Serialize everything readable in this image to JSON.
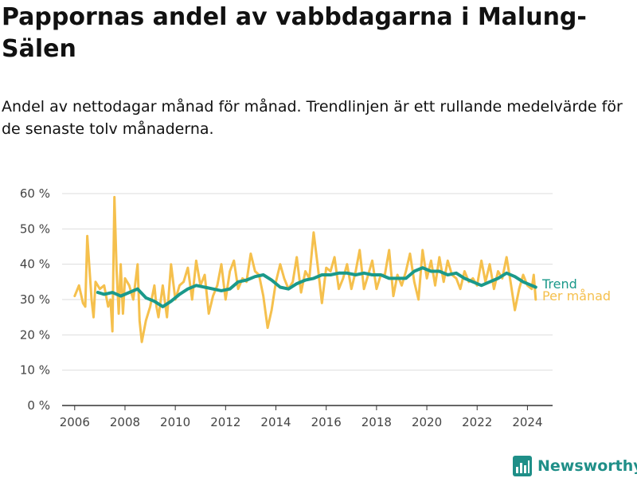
{
  "title": "Pappornas andel av vabbdagarna i Malung-Sälen",
  "subtitle": "Andel av nettodagar månad för månad. Trendlinjen är ett rullande medelvärde för de senaste tolv månaderna.",
  "brand": "Newsworthy",
  "colors": {
    "monthly": "#f5c04d",
    "trend": "#1a998a",
    "grid": "#dddddd",
    "axis": "#333333"
  },
  "chart_data": {
    "type": "line",
    "xlim": [
      2005.5,
      2025.0
    ],
    "ylim": [
      0,
      60
    ],
    "x_ticks": [
      {
        "value": 2006,
        "label": "2006"
      },
      {
        "value": 2008,
        "label": "2008"
      },
      {
        "value": 2010,
        "label": "2010"
      },
      {
        "value": 2012,
        "label": "2012"
      },
      {
        "value": 2014,
        "label": "2014"
      },
      {
        "value": 2016,
        "label": "2016"
      },
      {
        "value": 2018,
        "label": "2018"
      },
      {
        "value": 2020,
        "label": "2020"
      },
      {
        "value": 2022,
        "label": "2022"
      },
      {
        "value": 2024,
        "label": "2024"
      }
    ],
    "y_ticks": [
      {
        "value": 0,
        "label": "0 %"
      },
      {
        "value": 10,
        "label": "10 %"
      },
      {
        "value": 20,
        "label": "20 %"
      },
      {
        "value": 30,
        "label": "30 %"
      },
      {
        "value": 40,
        "label": "40 %"
      },
      {
        "value": 50,
        "label": "50 %"
      },
      {
        "value": 60,
        "label": "60 %"
      }
    ],
    "grid": true,
    "series": [
      {
        "name": "Per månad",
        "color": "#f5c04d",
        "points": [
          [
            2006.0,
            31
          ],
          [
            2006.17,
            34
          ],
          [
            2006.33,
            29
          ],
          [
            2006.42,
            28
          ],
          [
            2006.5,
            48
          ],
          [
            2006.67,
            30
          ],
          [
            2006.75,
            25
          ],
          [
            2006.83,
            35
          ],
          [
            2007.0,
            33
          ],
          [
            2007.17,
            34
          ],
          [
            2007.33,
            28
          ],
          [
            2007.42,
            30
          ],
          [
            2007.5,
            21
          ],
          [
            2007.58,
            59
          ],
          [
            2007.67,
            38
          ],
          [
            2007.75,
            26
          ],
          [
            2007.83,
            40
          ],
          [
            2007.92,
            26
          ],
          [
            2008.0,
            36
          ],
          [
            2008.17,
            34
          ],
          [
            2008.33,
            30
          ],
          [
            2008.5,
            40
          ],
          [
            2008.58,
            24
          ],
          [
            2008.67,
            18
          ],
          [
            2008.83,
            24
          ],
          [
            2009.0,
            28
          ],
          [
            2009.17,
            34
          ],
          [
            2009.25,
            28
          ],
          [
            2009.33,
            25
          ],
          [
            2009.5,
            34
          ],
          [
            2009.67,
            25
          ],
          [
            2009.83,
            40
          ],
          [
            2010.0,
            30
          ],
          [
            2010.17,
            34
          ],
          [
            2010.33,
            35
          ],
          [
            2010.5,
            39
          ],
          [
            2010.67,
            30
          ],
          [
            2010.83,
            41
          ],
          [
            2011.0,
            34
          ],
          [
            2011.17,
            37
          ],
          [
            2011.33,
            26
          ],
          [
            2011.5,
            31
          ],
          [
            2011.67,
            34
          ],
          [
            2011.83,
            40
          ],
          [
            2012.0,
            30
          ],
          [
            2012.17,
            38
          ],
          [
            2012.33,
            41
          ],
          [
            2012.5,
            33
          ],
          [
            2012.67,
            36
          ],
          [
            2012.83,
            35
          ],
          [
            2013.0,
            43
          ],
          [
            2013.17,
            38
          ],
          [
            2013.33,
            37
          ],
          [
            2013.5,
            31
          ],
          [
            2013.67,
            22
          ],
          [
            2013.83,
            27
          ],
          [
            2014.0,
            35
          ],
          [
            2014.17,
            40
          ],
          [
            2014.33,
            36
          ],
          [
            2014.5,
            33
          ],
          [
            2014.67,
            35
          ],
          [
            2014.83,
            42
          ],
          [
            2015.0,
            32
          ],
          [
            2015.17,
            38
          ],
          [
            2015.33,
            36
          ],
          [
            2015.5,
            49
          ],
          [
            2015.67,
            39
          ],
          [
            2015.83,
            29
          ],
          [
            2016.0,
            39
          ],
          [
            2016.17,
            38
          ],
          [
            2016.33,
            42
          ],
          [
            2016.5,
            33
          ],
          [
            2016.67,
            36
          ],
          [
            2016.83,
            40
          ],
          [
            2017.0,
            33
          ],
          [
            2017.17,
            38
          ],
          [
            2017.33,
            44
          ],
          [
            2017.5,
            33
          ],
          [
            2017.67,
            37
          ],
          [
            2017.83,
            41
          ],
          [
            2018.0,
            33
          ],
          [
            2018.17,
            37
          ],
          [
            2018.33,
            37
          ],
          [
            2018.5,
            44
          ],
          [
            2018.67,
            31
          ],
          [
            2018.83,
            37
          ],
          [
            2019.0,
            34
          ],
          [
            2019.17,
            38
          ],
          [
            2019.33,
            43
          ],
          [
            2019.5,
            35
          ],
          [
            2019.67,
            30
          ],
          [
            2019.83,
            44
          ],
          [
            2020.0,
            36
          ],
          [
            2020.17,
            41
          ],
          [
            2020.33,
            34
          ],
          [
            2020.5,
            42
          ],
          [
            2020.67,
            35
          ],
          [
            2020.83,
            41
          ],
          [
            2021.0,
            37
          ],
          [
            2021.17,
            36
          ],
          [
            2021.33,
            33
          ],
          [
            2021.5,
            38
          ],
          [
            2021.67,
            35
          ],
          [
            2021.83,
            36
          ],
          [
            2022.0,
            34
          ],
          [
            2022.17,
            41
          ],
          [
            2022.33,
            35
          ],
          [
            2022.5,
            40
          ],
          [
            2022.67,
            33
          ],
          [
            2022.83,
            38
          ],
          [
            2023.0,
            36
          ],
          [
            2023.17,
            42
          ],
          [
            2023.33,
            35
          ],
          [
            2023.5,
            27
          ],
          [
            2023.67,
            33
          ],
          [
            2023.83,
            37
          ],
          [
            2024.0,
            34
          ],
          [
            2024.17,
            33
          ],
          [
            2024.25,
            37
          ],
          [
            2024.33,
            30
          ]
        ]
      },
      {
        "name": "Trend",
        "color": "#1a998a",
        "points": [
          [
            2006.92,
            32
          ],
          [
            2007.17,
            31.5
          ],
          [
            2007.5,
            32
          ],
          [
            2007.83,
            31
          ],
          [
            2008.17,
            32
          ],
          [
            2008.5,
            33
          ],
          [
            2008.83,
            30.5
          ],
          [
            2009.17,
            29.5
          ],
          [
            2009.5,
            28
          ],
          [
            2009.83,
            29.5
          ],
          [
            2010.17,
            31.5
          ],
          [
            2010.5,
            33
          ],
          [
            2010.83,
            34
          ],
          [
            2011.17,
            33.5
          ],
          [
            2011.5,
            33
          ],
          [
            2011.83,
            32.5
          ],
          [
            2012.17,
            33
          ],
          [
            2012.5,
            35
          ],
          [
            2012.83,
            35.5
          ],
          [
            2013.17,
            36.5
          ],
          [
            2013.5,
            37
          ],
          [
            2013.83,
            35.5
          ],
          [
            2014.17,
            33.5
          ],
          [
            2014.5,
            33
          ],
          [
            2014.83,
            34.5
          ],
          [
            2015.17,
            35.5
          ],
          [
            2015.5,
            36
          ],
          [
            2015.83,
            37
          ],
          [
            2016.17,
            37
          ],
          [
            2016.5,
            37.5
          ],
          [
            2016.83,
            37.5
          ],
          [
            2017.17,
            37
          ],
          [
            2017.5,
            37.5
          ],
          [
            2017.83,
            37
          ],
          [
            2018.17,
            37
          ],
          [
            2018.5,
            36
          ],
          [
            2018.83,
            36
          ],
          [
            2019.17,
            36
          ],
          [
            2019.5,
            38
          ],
          [
            2019.83,
            39
          ],
          [
            2020.17,
            38
          ],
          [
            2020.5,
            38
          ],
          [
            2020.83,
            37
          ],
          [
            2021.17,
            37.5
          ],
          [
            2021.5,
            36
          ],
          [
            2021.83,
            35
          ],
          [
            2022.17,
            34
          ],
          [
            2022.5,
            35
          ],
          [
            2022.83,
            36
          ],
          [
            2023.17,
            37.5
          ],
          [
            2023.5,
            36.5
          ],
          [
            2023.83,
            35
          ],
          [
            2024.17,
            34
          ],
          [
            2024.33,
            33.5
          ]
        ]
      }
    ],
    "legend": [
      {
        "name": "Trend",
        "color": "#1a998a"
      },
      {
        "name": "Per månad",
        "color": "#f5c04d"
      }
    ],
    "legend_placement": "right, at line ends"
  }
}
